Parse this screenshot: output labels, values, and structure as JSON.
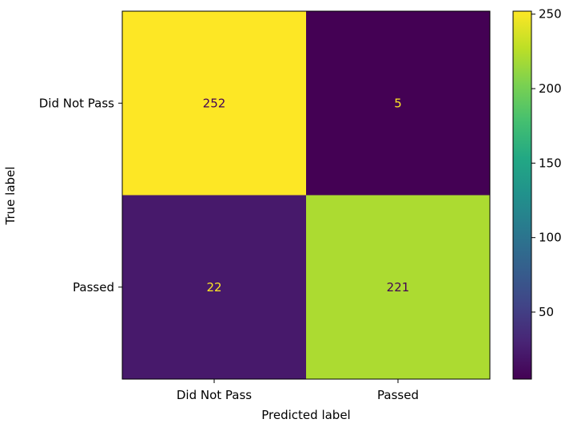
{
  "chart_data": {
    "type": "heatmap",
    "title": "",
    "xlabel": "Predicted label",
    "ylabel": "True label",
    "x_categories": [
      "Did Not Pass",
      "Passed"
    ],
    "y_categories": [
      "Did Not Pass",
      "Passed"
    ],
    "values": [
      [
        252,
        5
      ],
      [
        22,
        221
      ]
    ],
    "colormap": "viridis",
    "colorbar": {
      "range": [
        5,
        252
      ],
      "ticks": [
        50,
        100,
        150,
        200,
        250
      ]
    },
    "text_colors": {
      "on_light": "#440154",
      "on_dark": "#fde725"
    },
    "grid": false
  }
}
